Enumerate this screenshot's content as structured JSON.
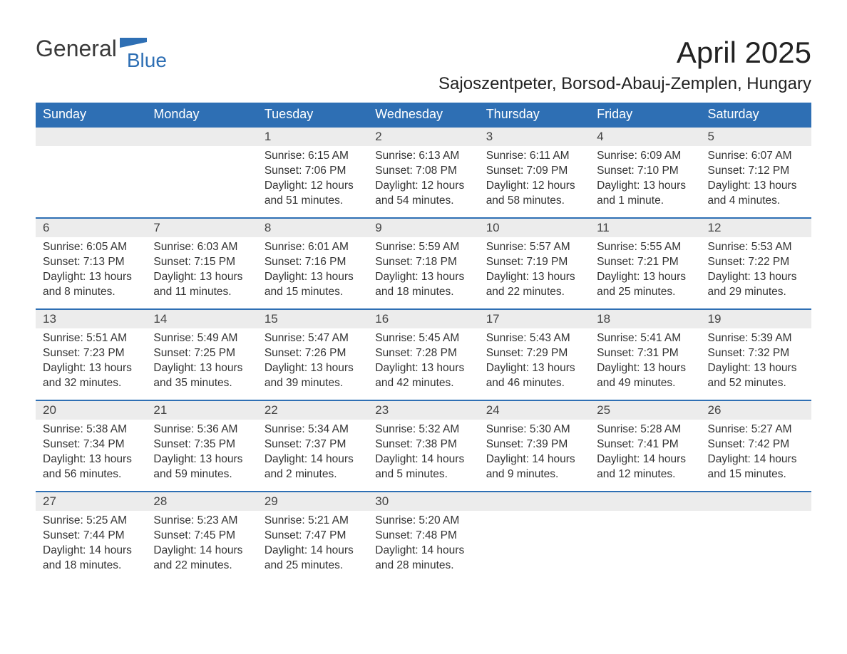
{
  "brand": {
    "part1": "General",
    "part2": "Blue"
  },
  "title": "April 2025",
  "location": "Sajoszentpeter, Borsod-Abauj-Zemplen, Hungary",
  "colors": {
    "header_bg": "#2e6fb4",
    "header_text": "#ffffff",
    "band_bg": "#ececec",
    "band_border": "#2e6fb4",
    "body_text": "#333333",
    "page_bg": "#ffffff",
    "brand_gray": "#3a3a3a",
    "brand_blue": "#2e6fb4"
  },
  "typography": {
    "title_fontsize": 42,
    "location_fontsize": 24,
    "header_fontsize": 18,
    "daynum_fontsize": 17,
    "body_fontsize": 15.5
  },
  "days_of_week": [
    "Sunday",
    "Monday",
    "Tuesday",
    "Wednesday",
    "Thursday",
    "Friday",
    "Saturday"
  ],
  "weeks": [
    [
      null,
      null,
      {
        "n": "1",
        "sunrise": "Sunrise: 6:15 AM",
        "sunset": "Sunset: 7:06 PM",
        "dl1": "Daylight: 12 hours",
        "dl2": "and 51 minutes."
      },
      {
        "n": "2",
        "sunrise": "Sunrise: 6:13 AM",
        "sunset": "Sunset: 7:08 PM",
        "dl1": "Daylight: 12 hours",
        "dl2": "and 54 minutes."
      },
      {
        "n": "3",
        "sunrise": "Sunrise: 6:11 AM",
        "sunset": "Sunset: 7:09 PM",
        "dl1": "Daylight: 12 hours",
        "dl2": "and 58 minutes."
      },
      {
        "n": "4",
        "sunrise": "Sunrise: 6:09 AM",
        "sunset": "Sunset: 7:10 PM",
        "dl1": "Daylight: 13 hours",
        "dl2": "and 1 minute."
      },
      {
        "n": "5",
        "sunrise": "Sunrise: 6:07 AM",
        "sunset": "Sunset: 7:12 PM",
        "dl1": "Daylight: 13 hours",
        "dl2": "and 4 minutes."
      }
    ],
    [
      {
        "n": "6",
        "sunrise": "Sunrise: 6:05 AM",
        "sunset": "Sunset: 7:13 PM",
        "dl1": "Daylight: 13 hours",
        "dl2": "and 8 minutes."
      },
      {
        "n": "7",
        "sunrise": "Sunrise: 6:03 AM",
        "sunset": "Sunset: 7:15 PM",
        "dl1": "Daylight: 13 hours",
        "dl2": "and 11 minutes."
      },
      {
        "n": "8",
        "sunrise": "Sunrise: 6:01 AM",
        "sunset": "Sunset: 7:16 PM",
        "dl1": "Daylight: 13 hours",
        "dl2": "and 15 minutes."
      },
      {
        "n": "9",
        "sunrise": "Sunrise: 5:59 AM",
        "sunset": "Sunset: 7:18 PM",
        "dl1": "Daylight: 13 hours",
        "dl2": "and 18 minutes."
      },
      {
        "n": "10",
        "sunrise": "Sunrise: 5:57 AM",
        "sunset": "Sunset: 7:19 PM",
        "dl1": "Daylight: 13 hours",
        "dl2": "and 22 minutes."
      },
      {
        "n": "11",
        "sunrise": "Sunrise: 5:55 AM",
        "sunset": "Sunset: 7:21 PM",
        "dl1": "Daylight: 13 hours",
        "dl2": "and 25 minutes."
      },
      {
        "n": "12",
        "sunrise": "Sunrise: 5:53 AM",
        "sunset": "Sunset: 7:22 PM",
        "dl1": "Daylight: 13 hours",
        "dl2": "and 29 minutes."
      }
    ],
    [
      {
        "n": "13",
        "sunrise": "Sunrise: 5:51 AM",
        "sunset": "Sunset: 7:23 PM",
        "dl1": "Daylight: 13 hours",
        "dl2": "and 32 minutes."
      },
      {
        "n": "14",
        "sunrise": "Sunrise: 5:49 AM",
        "sunset": "Sunset: 7:25 PM",
        "dl1": "Daylight: 13 hours",
        "dl2": "and 35 minutes."
      },
      {
        "n": "15",
        "sunrise": "Sunrise: 5:47 AM",
        "sunset": "Sunset: 7:26 PM",
        "dl1": "Daylight: 13 hours",
        "dl2": "and 39 minutes."
      },
      {
        "n": "16",
        "sunrise": "Sunrise: 5:45 AM",
        "sunset": "Sunset: 7:28 PM",
        "dl1": "Daylight: 13 hours",
        "dl2": "and 42 minutes."
      },
      {
        "n": "17",
        "sunrise": "Sunrise: 5:43 AM",
        "sunset": "Sunset: 7:29 PM",
        "dl1": "Daylight: 13 hours",
        "dl2": "and 46 minutes."
      },
      {
        "n": "18",
        "sunrise": "Sunrise: 5:41 AM",
        "sunset": "Sunset: 7:31 PM",
        "dl1": "Daylight: 13 hours",
        "dl2": "and 49 minutes."
      },
      {
        "n": "19",
        "sunrise": "Sunrise: 5:39 AM",
        "sunset": "Sunset: 7:32 PM",
        "dl1": "Daylight: 13 hours",
        "dl2": "and 52 minutes."
      }
    ],
    [
      {
        "n": "20",
        "sunrise": "Sunrise: 5:38 AM",
        "sunset": "Sunset: 7:34 PM",
        "dl1": "Daylight: 13 hours",
        "dl2": "and 56 minutes."
      },
      {
        "n": "21",
        "sunrise": "Sunrise: 5:36 AM",
        "sunset": "Sunset: 7:35 PM",
        "dl1": "Daylight: 13 hours",
        "dl2": "and 59 minutes."
      },
      {
        "n": "22",
        "sunrise": "Sunrise: 5:34 AM",
        "sunset": "Sunset: 7:37 PM",
        "dl1": "Daylight: 14 hours",
        "dl2": "and 2 minutes."
      },
      {
        "n": "23",
        "sunrise": "Sunrise: 5:32 AM",
        "sunset": "Sunset: 7:38 PM",
        "dl1": "Daylight: 14 hours",
        "dl2": "and 5 minutes."
      },
      {
        "n": "24",
        "sunrise": "Sunrise: 5:30 AM",
        "sunset": "Sunset: 7:39 PM",
        "dl1": "Daylight: 14 hours",
        "dl2": "and 9 minutes."
      },
      {
        "n": "25",
        "sunrise": "Sunrise: 5:28 AM",
        "sunset": "Sunset: 7:41 PM",
        "dl1": "Daylight: 14 hours",
        "dl2": "and 12 minutes."
      },
      {
        "n": "26",
        "sunrise": "Sunrise: 5:27 AM",
        "sunset": "Sunset: 7:42 PM",
        "dl1": "Daylight: 14 hours",
        "dl2": "and 15 minutes."
      }
    ],
    [
      {
        "n": "27",
        "sunrise": "Sunrise: 5:25 AM",
        "sunset": "Sunset: 7:44 PM",
        "dl1": "Daylight: 14 hours",
        "dl2": "and 18 minutes."
      },
      {
        "n": "28",
        "sunrise": "Sunrise: 5:23 AM",
        "sunset": "Sunset: 7:45 PM",
        "dl1": "Daylight: 14 hours",
        "dl2": "and 22 minutes."
      },
      {
        "n": "29",
        "sunrise": "Sunrise: 5:21 AM",
        "sunset": "Sunset: 7:47 PM",
        "dl1": "Daylight: 14 hours",
        "dl2": "and 25 minutes."
      },
      {
        "n": "30",
        "sunrise": "Sunrise: 5:20 AM",
        "sunset": "Sunset: 7:48 PM",
        "dl1": "Daylight: 14 hours",
        "dl2": "and 28 minutes."
      },
      null,
      null,
      null
    ]
  ]
}
